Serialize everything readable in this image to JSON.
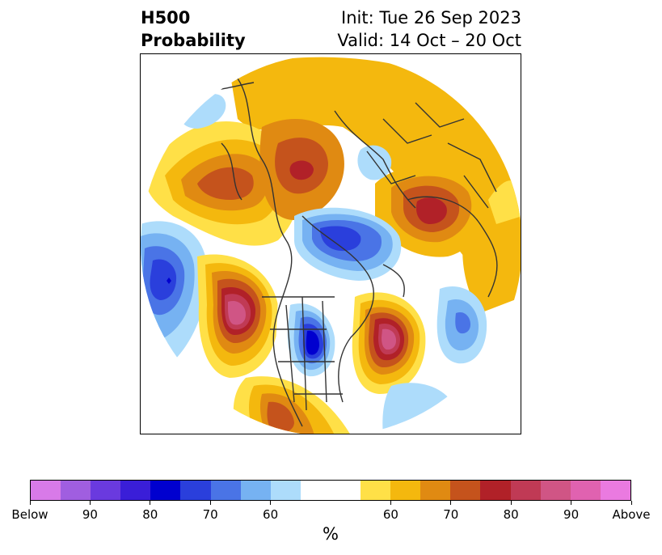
{
  "title": {
    "left_line1": "H500",
    "left_line2": "Probability",
    "right_line1": "Init: Tue 26 Sep 2023",
    "right_line2": "Valid: 14 Oct – 20 Oct"
  },
  "colorbar": {
    "unit": "%",
    "segments": [
      {
        "color": "#d87ae8",
        "weight": 1
      },
      {
        "color": "#a05ee0",
        "weight": 1
      },
      {
        "color": "#6a3adf",
        "weight": 1
      },
      {
        "color": "#3a1ed8",
        "weight": 1
      },
      {
        "color": "#0000cf",
        "weight": 1
      },
      {
        "color": "#2a3fdc",
        "weight": 1
      },
      {
        "color": "#4a74e6",
        "weight": 1
      },
      {
        "color": "#76b2f2",
        "weight": 1
      },
      {
        "color": "#addcfb",
        "weight": 1
      },
      {
        "color": "#ffffff",
        "weight": 2
      },
      {
        "color": "#ffe047",
        "weight": 1
      },
      {
        "color": "#f4b80e",
        "weight": 1
      },
      {
        "color": "#e08a12",
        "weight": 1
      },
      {
        "color": "#c5531c",
        "weight": 1
      },
      {
        "color": "#b12128",
        "weight": 1
      },
      {
        "color": "#c03a55",
        "weight": 1
      },
      {
        "color": "#d05585",
        "weight": 1
      },
      {
        "color": "#e062b0",
        "weight": 1
      },
      {
        "color": "#ea7ae0",
        "weight": 1
      }
    ],
    "ticks": [
      "Below",
      "90",
      "80",
      "70",
      "60",
      "60",
      "70",
      "80",
      "90",
      "Above"
    ]
  },
  "map": {
    "colors": {
      "land_lines": "#333333",
      "white": "#ffffff"
    }
  }
}
